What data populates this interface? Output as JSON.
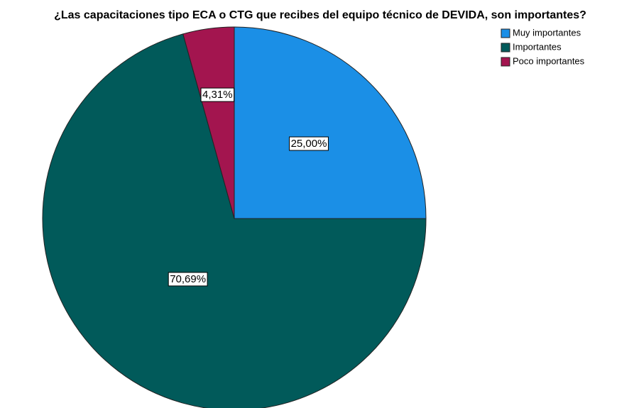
{
  "chart_data": {
    "type": "pie",
    "title": "¿Las capacitaciones tipo ECA o CTG que recibes del equipo técnico de DEVIDA, son importantes?",
    "categories": [
      "Muy importantes",
      "Importantes",
      "Poco importantes"
    ],
    "values": [
      25,
      70.69,
      4.31
    ],
    "value_labels": [
      "25,00%",
      "70,69%",
      "4,31%"
    ],
    "colors": [
      "#1b8fe6",
      "#015a5a",
      "#a3154f"
    ],
    "legend": "upper right"
  }
}
